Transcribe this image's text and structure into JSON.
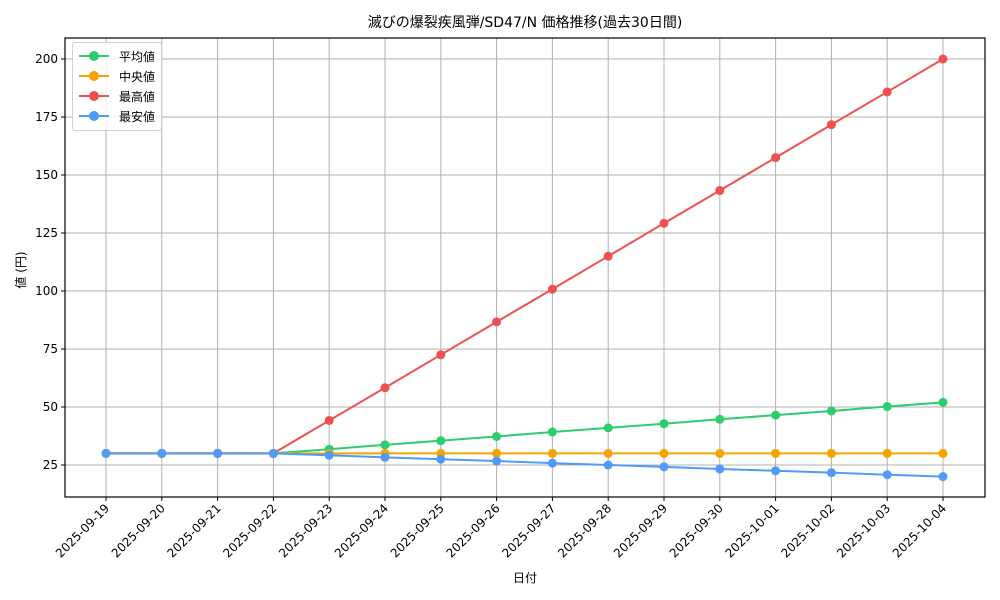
{
  "chart_data": {
    "type": "line",
    "title": "滅びの爆裂疾風弾/SD47/N 価格推移(過去30日間)",
    "xlabel": "日付",
    "ylabel": "値 (円)",
    "x": [
      "2025-09-19",
      "2025-09-20",
      "2025-09-21",
      "2025-09-22",
      "2025-09-23",
      "2025-09-24",
      "2025-09-25",
      "2025-09-26",
      "2025-09-27",
      "2025-09-28",
      "2025-09-29",
      "2025-09-30",
      "2025-10-01",
      "2025-10-02",
      "2025-10-03",
      "2025-10-04"
    ],
    "yticks": [
      25,
      50,
      75,
      100,
      125,
      150,
      175,
      200
    ],
    "ylim": [
      11.3,
      208.6
    ],
    "grid": true,
    "legend_position": "upper left",
    "series": [
      {
        "name": "平均値",
        "color": "#2ecc71",
        "values": [
          30,
          30,
          30,
          30,
          31.8,
          33.7,
          35.5,
          37.3,
          39.2,
          41.0,
          42.8,
          44.7,
          46.5,
          48.3,
          50.2,
          52.0
        ]
      },
      {
        "name": "中央値",
        "color": "#f5a300",
        "values": [
          30,
          30,
          30,
          30,
          30,
          30,
          30,
          30,
          30,
          30,
          30,
          30,
          30,
          30,
          30,
          30
        ]
      },
      {
        "name": "最高値",
        "color": "#f05050",
        "values": [
          30,
          30,
          30,
          30,
          44.2,
          58.3,
          72.5,
          86.7,
          100.8,
          115.0,
          129.2,
          143.3,
          157.5,
          171.7,
          185.8,
          200.0
        ]
      },
      {
        "name": "最安値",
        "color": "#4f9bf5",
        "values": [
          30,
          30,
          30,
          30,
          29.2,
          28.3,
          27.5,
          26.7,
          25.8,
          25.0,
          24.2,
          23.3,
          22.5,
          21.7,
          20.8,
          20.0
        ]
      }
    ]
  }
}
